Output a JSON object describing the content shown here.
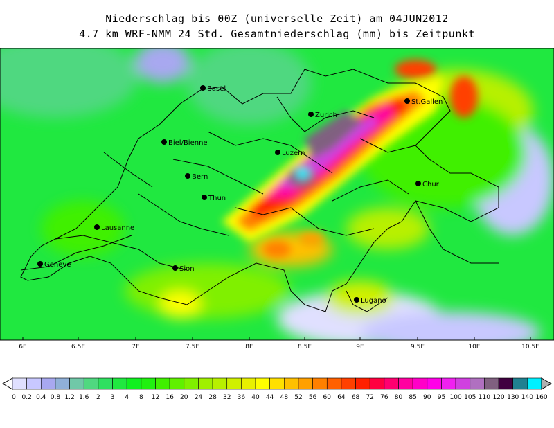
{
  "title_line1": "Niederschlag bis 00Z (universelle Zeit) am 04JUN2012",
  "title_line2": "4.7 km WRF-NMM 24 Std. Gesamtniederschlag (mm) bis Zeitpunkt",
  "map": {
    "lon_range": [
      5.9,
      10.6
    ],
    "lon_ticks": [
      "6E",
      "6.5E",
      "7E",
      "7.5E",
      "8E",
      "8.5E",
      "9E",
      "9.5E",
      "10E",
      "10.5E"
    ],
    "cities": [
      {
        "name": "Basel",
        "label": "Basel"
      },
      {
        "name": "Zuerich",
        "label": "Zurich"
      },
      {
        "name": "StGallen",
        "label": "St.Gallen"
      },
      {
        "name": "BielBienne",
        "label": "Biel/Bienne"
      },
      {
        "name": "Luzern",
        "label": "Luzern"
      },
      {
        "name": "Bern",
        "label": "Bern"
      },
      {
        "name": "Chur",
        "label": "Chur"
      },
      {
        "name": "Thun",
        "label": "Thun"
      },
      {
        "name": "Lausanne",
        "label": "Lausanne"
      },
      {
        "name": "Geneve",
        "label": "Geneve"
      },
      {
        "name": "Sion",
        "label": "Sion"
      },
      {
        "name": "Lugano",
        "label": "Lugano"
      }
    ]
  },
  "colorbar": {
    "labels": [
      "0",
      "0.2",
      "0.4",
      "0.8",
      "1.2",
      "1.6",
      "2",
      "3",
      "4",
      "8",
      "12",
      "16",
      "20",
      "24",
      "28",
      "32",
      "36",
      "40",
      "44",
      "48",
      "52",
      "56",
      "60",
      "64",
      "68",
      "72",
      "76",
      "80",
      "85",
      "90",
      "95",
      "100",
      "105",
      "110",
      "120",
      "130",
      "140",
      "160"
    ],
    "colors": [
      "#e0e0ff",
      "#c8c8ff",
      "#a8a8f0",
      "#90b0d8",
      "#70c8a8",
      "#50d880",
      "#30e060",
      "#20e840",
      "#10f020",
      "#20f010",
      "#40f000",
      "#60f000",
      "#80f000",
      "#a0f000",
      "#b8f000",
      "#d0f000",
      "#e8f000",
      "#ffff00",
      "#ffe000",
      "#ffc000",
      "#ffa000",
      "#ff8000",
      "#ff6000",
      "#ff4000",
      "#ff2000",
      "#ff0040",
      "#ff0070",
      "#ff00a0",
      "#ff00c8",
      "#ff00e8",
      "#f020f0",
      "#d040e0",
      "#b070c0",
      "#806080",
      "#400040",
      "#208090",
      "#00f0ff"
    ]
  }
}
